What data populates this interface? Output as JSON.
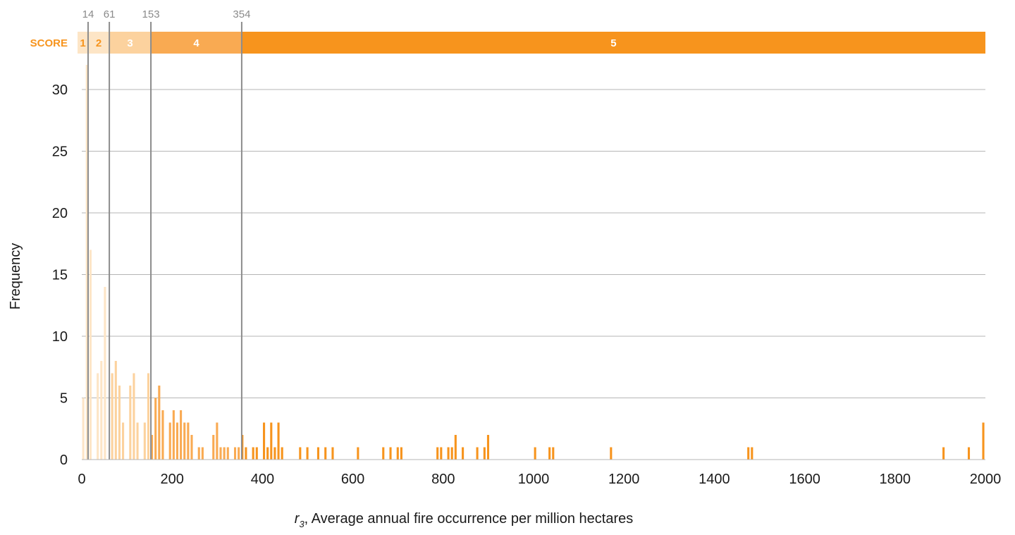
{
  "chart_data": {
    "type": "bar",
    "xlabel_symbol": "r",
    "xlabel_subscript": "3",
    "xlabel_rest": ", Average annual fire occurrence per million hectares",
    "ylabel": "Frequency",
    "xlim": [
      0,
      2000
    ],
    "ylim": [
      0,
      30
    ],
    "x_ticks": [
      "0",
      "200",
      "400",
      "600",
      "800",
      "1000",
      "1200",
      "1400",
      "1600",
      "1800",
      "2000"
    ],
    "y_ticks": [
      "0",
      "5",
      "10",
      "15",
      "20",
      "25",
      "30"
    ],
    "grid": "horizontal",
    "score_bar": {
      "label": "SCORE",
      "segments": [
        {
          "label": "1",
          "from": 0,
          "to": 14,
          "color": "#fde5c6"
        },
        {
          "label": "2",
          "from": 14,
          "to": 61,
          "color": "#fde5c6"
        },
        {
          "label": "3",
          "from": 61,
          "to": 153,
          "color": "#fcd29e"
        },
        {
          "label": "4",
          "from": 153,
          "to": 354,
          "color": "#f9aa52"
        },
        {
          "label": "5",
          "from": 354,
          "to": 2000,
          "color": "#f7941d"
        }
      ]
    },
    "thresholds": [
      {
        "value": 14,
        "label": "14"
      },
      {
        "value": 61,
        "label": "61"
      },
      {
        "value": 153,
        "label": "153"
      },
      {
        "value": 354,
        "label": "354"
      }
    ],
    "bins": [
      {
        "x": 0,
        "y": 5
      },
      {
        "x": 8,
        "y": 32
      },
      {
        "x": 16,
        "y": 17
      },
      {
        "x": 24,
        "y": 0
      },
      {
        "x": 32,
        "y": 7
      },
      {
        "x": 40,
        "y": 8
      },
      {
        "x": 48,
        "y": 14
      },
      {
        "x": 56,
        "y": 0
      },
      {
        "x": 64,
        "y": 7
      },
      {
        "x": 72,
        "y": 8
      },
      {
        "x": 80,
        "y": 6
      },
      {
        "x": 88,
        "y": 3
      },
      {
        "x": 96,
        "y": 0
      },
      {
        "x": 104,
        "y": 6
      },
      {
        "x": 112,
        "y": 7
      },
      {
        "x": 120,
        "y": 3
      },
      {
        "x": 128,
        "y": 0
      },
      {
        "x": 136,
        "y": 3
      },
      {
        "x": 144,
        "y": 7
      },
      {
        "x": 152,
        "y": 2
      },
      {
        "x": 160,
        "y": 5
      },
      {
        "x": 168,
        "y": 6
      },
      {
        "x": 176,
        "y": 4
      },
      {
        "x": 184,
        "y": 0
      },
      {
        "x": 192,
        "y": 3
      },
      {
        "x": 200,
        "y": 4
      },
      {
        "x": 208,
        "y": 3
      },
      {
        "x": 216,
        "y": 4
      },
      {
        "x": 224,
        "y": 3
      },
      {
        "x": 232,
        "y": 3
      },
      {
        "x": 240,
        "y": 2
      },
      {
        "x": 248,
        "y": 0
      },
      {
        "x": 256,
        "y": 1
      },
      {
        "x": 264,
        "y": 1
      },
      {
        "x": 280,
        "y": 0
      },
      {
        "x": 288,
        "y": 2
      },
      {
        "x": 296,
        "y": 3
      },
      {
        "x": 304,
        "y": 1
      },
      {
        "x": 312,
        "y": 1
      },
      {
        "x": 320,
        "y": 1
      },
      {
        "x": 336,
        "y": 1
      },
      {
        "x": 344,
        "y": 1
      },
      {
        "x": 352,
        "y": 2
      },
      {
        "x": 360,
        "y": 1
      },
      {
        "x": 376,
        "y": 1
      },
      {
        "x": 384,
        "y": 1
      },
      {
        "x": 400,
        "y": 3
      },
      {
        "x": 408,
        "y": 1
      },
      {
        "x": 416,
        "y": 3
      },
      {
        "x": 424,
        "y": 1
      },
      {
        "x": 432,
        "y": 3
      },
      {
        "x": 440,
        "y": 1
      },
      {
        "x": 480,
        "y": 1
      },
      {
        "x": 496,
        "y": 1
      },
      {
        "x": 520,
        "y": 1
      },
      {
        "x": 536,
        "y": 1
      },
      {
        "x": 552,
        "y": 1
      },
      {
        "x": 608,
        "y": 1
      },
      {
        "x": 664,
        "y": 1
      },
      {
        "x": 680,
        "y": 1
      },
      {
        "x": 696,
        "y": 1
      },
      {
        "x": 704,
        "y": 1
      },
      {
        "x": 784,
        "y": 1
      },
      {
        "x": 792,
        "y": 1
      },
      {
        "x": 808,
        "y": 1
      },
      {
        "x": 816,
        "y": 1
      },
      {
        "x": 824,
        "y": 2
      },
      {
        "x": 840,
        "y": 1
      },
      {
        "x": 872,
        "y": 1
      },
      {
        "x": 888,
        "y": 1
      },
      {
        "x": 896,
        "y": 2
      },
      {
        "x": 1000,
        "y": 1
      },
      {
        "x": 1032,
        "y": 1
      },
      {
        "x": 1040,
        "y": 1
      },
      {
        "x": 1168,
        "y": 1
      },
      {
        "x": 1472,
        "y": 1
      },
      {
        "x": 1480,
        "y": 1
      },
      {
        "x": 1904,
        "y": 1
      },
      {
        "x": 1960,
        "y": 1
      },
      {
        "x": 1992,
        "y": 3
      }
    ],
    "bin_width": 8
  }
}
